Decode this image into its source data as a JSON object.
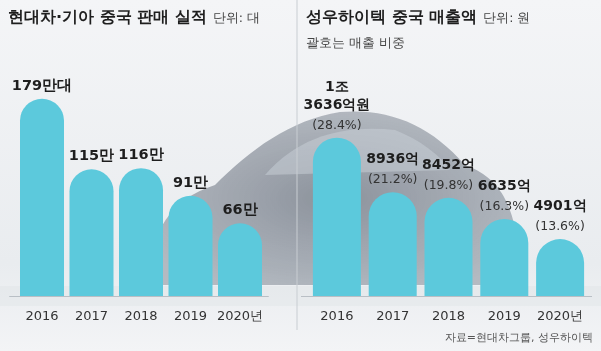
{
  "source": "자료=현대차그룹, 성우하이텍",
  "chart_data": [
    {
      "type": "bar",
      "title": "현대차·기아 중국 판매 실적",
      "unit": "단위: 대",
      "categories": [
        "2016",
        "2017",
        "2018",
        "2019",
        "2020년"
      ],
      "values": [
        179,
        115,
        116,
        91,
        66
      ],
      "value_labels": [
        "179만대",
        "115만",
        "116만",
        "91만",
        "66만"
      ],
      "color": "#5cc9dc",
      "ylim": [
        0,
        196
      ],
      "data_labels": true,
      "tick_labels": "x"
    },
    {
      "type": "bar",
      "title": "성우하이텍 중국 매출액",
      "unit": "단위: 원",
      "subtitle": "괄호는 매출 비중",
      "categories": [
        "2016",
        "2017",
        "2018",
        "2019",
        "2020년"
      ],
      "values": [
        13636,
        8936,
        8452,
        6635,
        4901
      ],
      "value_labels": [
        "1조 3636억원",
        "8936억",
        "8452억",
        "6635억",
        "4901억"
      ],
      "shares": [
        28.4,
        21.2,
        19.8,
        16.3,
        13.6
      ],
      "share_labels": [
        "(28.4%)",
        "(21.2%)",
        "(19.8%)",
        "(16.3%)",
        "(13.6%)"
      ],
      "color": "#5cc9dc",
      "ylim": [
        0,
        18600
      ],
      "data_labels": true,
      "tick_labels": "x"
    }
  ]
}
